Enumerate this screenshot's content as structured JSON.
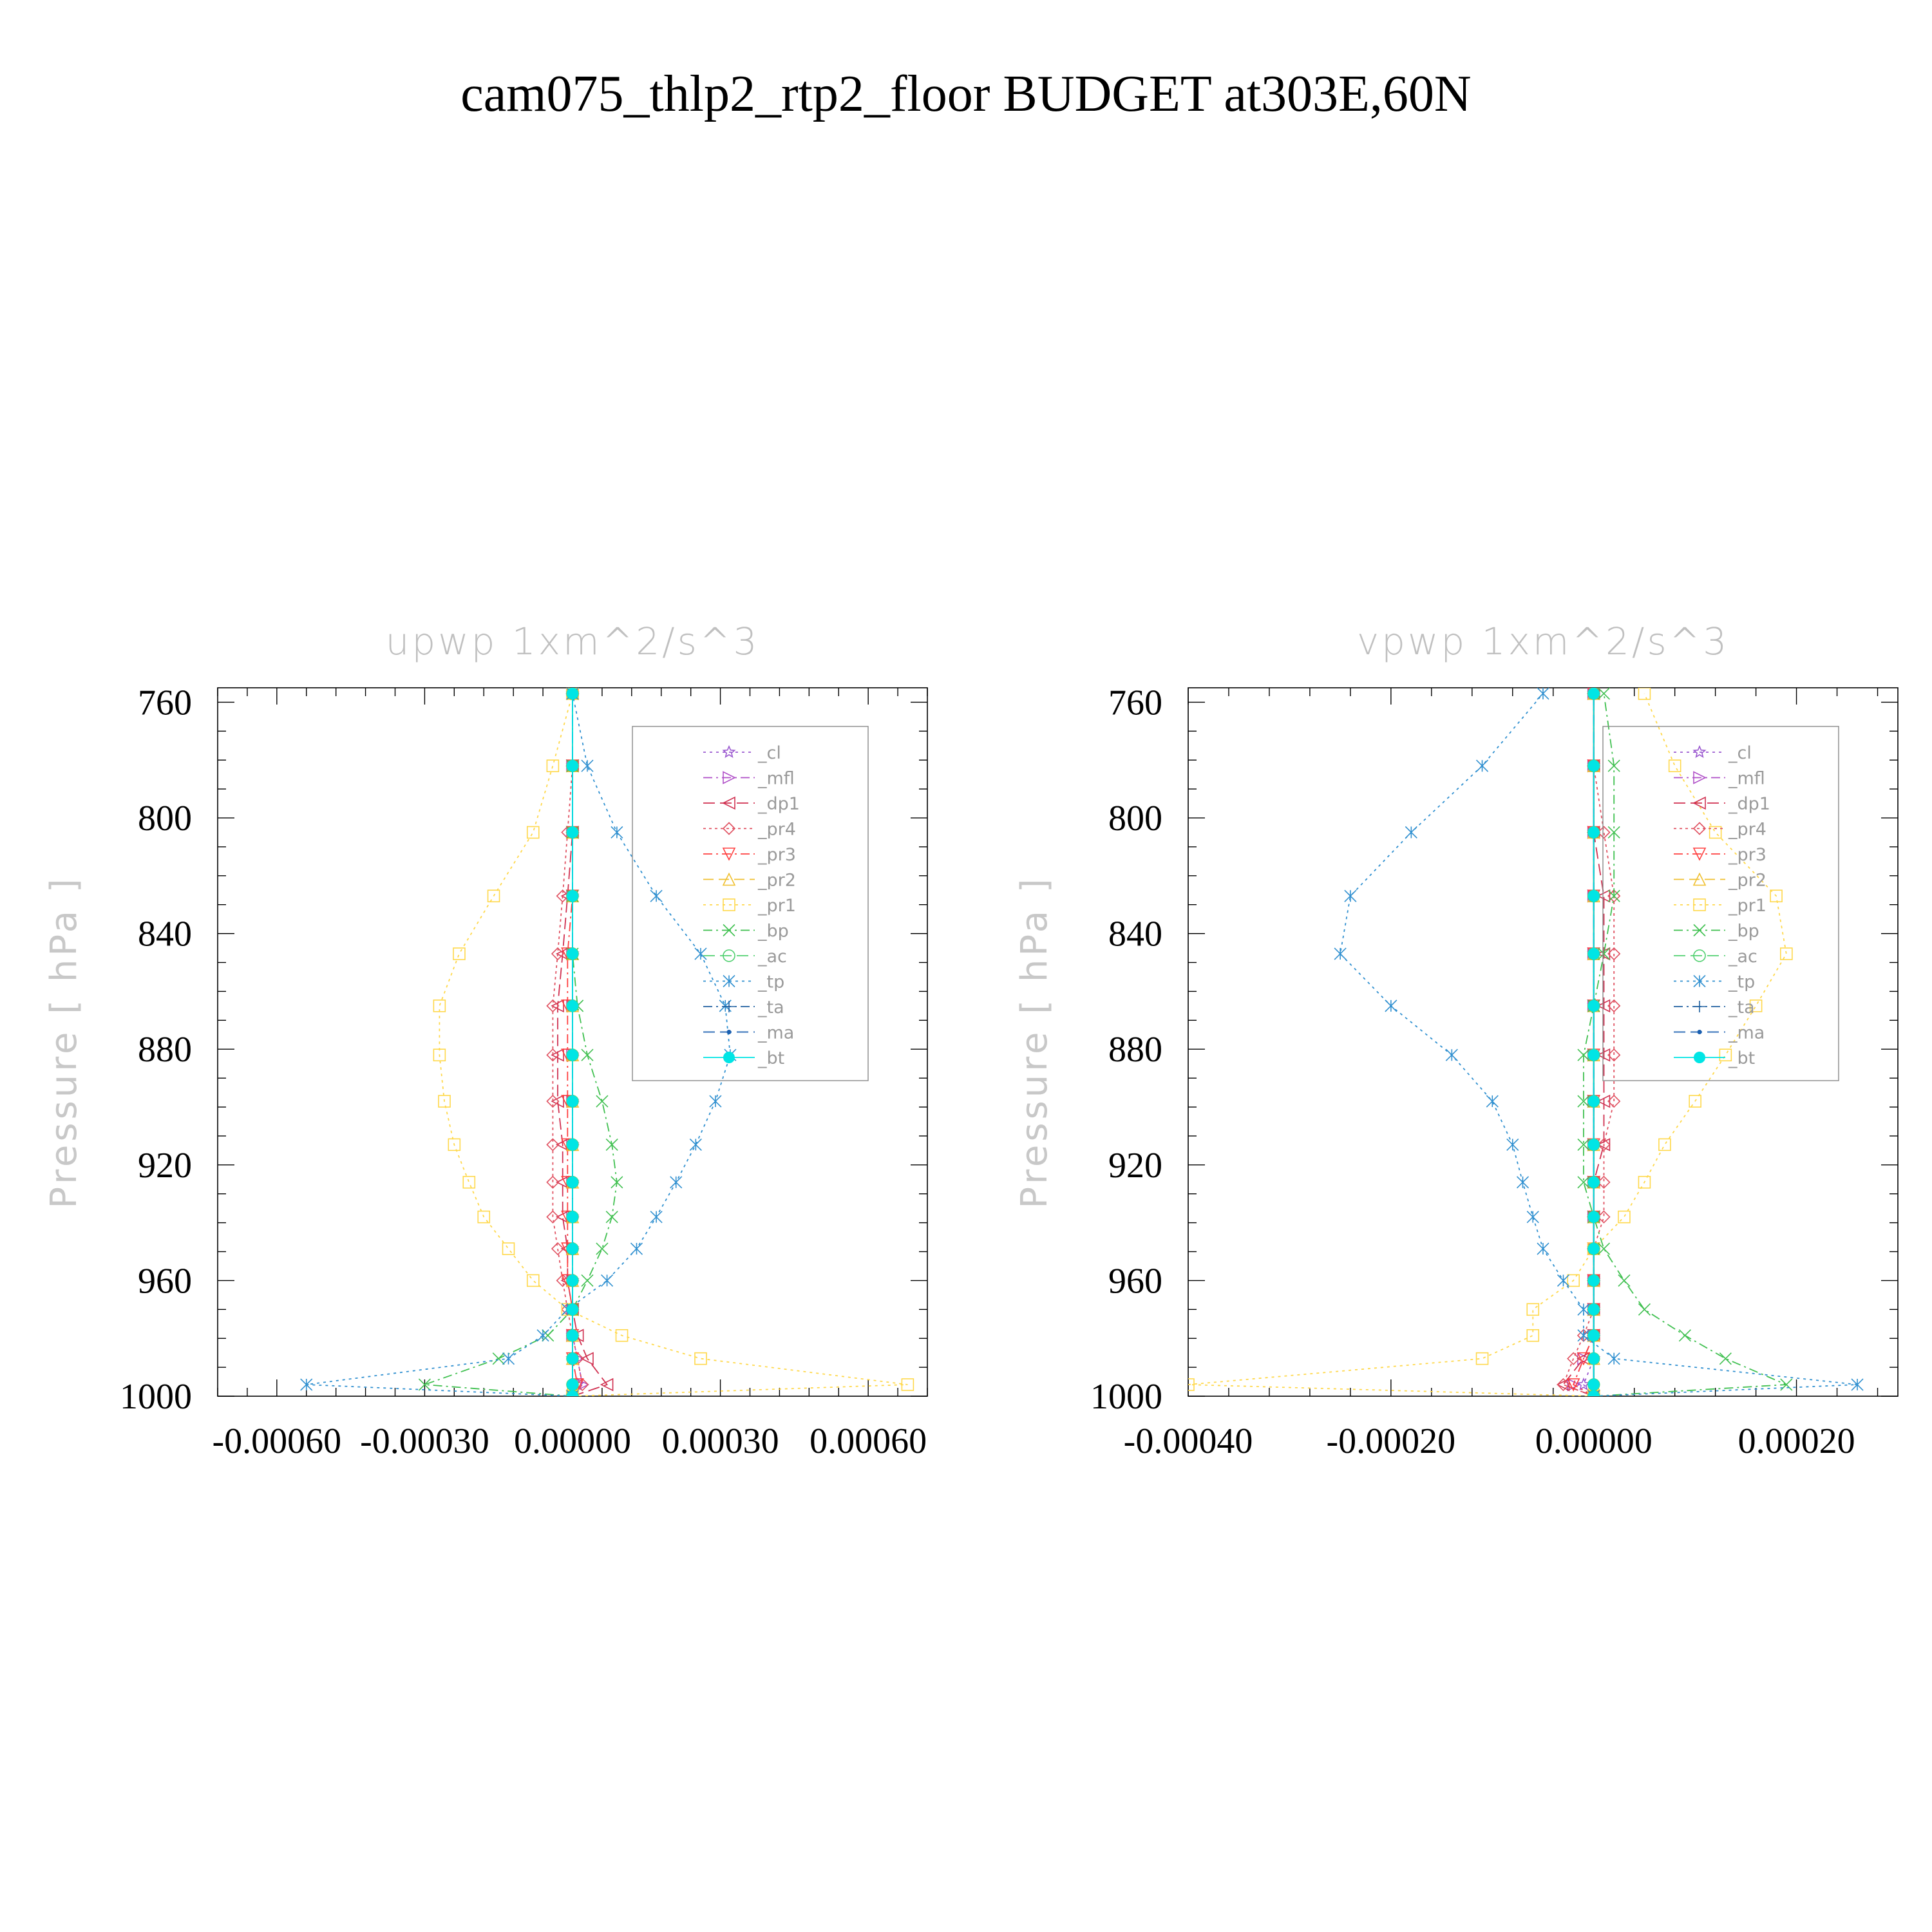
{
  "page_title": "cam075_thlp2_rtp2_floor  BUDGET at303E,60N",
  "chart_data": [
    {
      "type": "line",
      "title": "upwp    1xm^2/s^3",
      "ylabel": "Pressure  [ hPa ]",
      "xlabel": "",
      "ylim": [
        1000,
        755
      ],
      "y_reversed": true,
      "xlim": [
        -0.00072,
        0.00072
      ],
      "yticks": [
        760,
        800,
        840,
        880,
        920,
        960,
        1000
      ],
      "xticks": [
        -0.0006,
        -0.0003,
        0.0,
        0.0003,
        0.0006
      ],
      "xtick_labels": [
        "-0.00060",
        "-0.00030",
        "0.00000",
        "0.00030",
        "0.00060"
      ],
      "ytick_labels": [
        "760",
        "800",
        "840",
        "880",
        "920",
        "960",
        "1000"
      ],
      "grid": false,
      "legend_position": "top-right",
      "y": [
        1000,
        996,
        987,
        979,
        970,
        960,
        949,
        938,
        926,
        913,
        898,
        882,
        865,
        847,
        827,
        805,
        782,
        757
      ],
      "series": [
        {
          "name": "_cl",
          "color": "#9b59d0",
          "marker": "star",
          "dash": "4,6",
          "values": [
            0,
            1e-05,
            0,
            0,
            0,
            0,
            0,
            0,
            0,
            0,
            0,
            0,
            0,
            0,
            0,
            0,
            0,
            0
          ]
        },
        {
          "name": "_mfl",
          "color": "#b050c8",
          "marker": "tri-right",
          "dash": "14,6,3,6",
          "values": [
            0,
            2e-05,
            1e-05,
            0,
            0,
            0,
            0,
            0,
            0,
            0,
            0,
            0,
            0,
            0,
            0,
            0,
            0,
            0
          ]
        },
        {
          "name": "_dp1",
          "color": "#d03050",
          "marker": "tri-left",
          "dash": "18,8",
          "values": [
            0,
            7e-05,
            3e-05,
            1e-05,
            0,
            -1e-05,
            -1e-05,
            -2e-05,
            -2e-05,
            -2e-05,
            -3e-05,
            -3e-05,
            -3e-05,
            -2e-05,
            -1e-05,
            0,
            0,
            0
          ]
        },
        {
          "name": "_pr4",
          "color": "#e05060",
          "marker": "diamond",
          "dash": "4,5",
          "values": [
            0,
            2e-05,
            1e-05,
            0,
            -1e-05,
            -2e-05,
            -3e-05,
            -4e-05,
            -4e-05,
            -4e-05,
            -4e-05,
            -4e-05,
            -4e-05,
            -3e-05,
            -2e-05,
            -1e-05,
            0,
            0
          ]
        },
        {
          "name": "_pr3",
          "color": "#ff4040",
          "marker": "tri-down",
          "dash": "14,6,3,6",
          "values": [
            0,
            1e-05,
            0,
            0,
            0,
            -1e-05,
            -1e-05,
            -1e-05,
            -1e-05,
            -1e-05,
            -1e-05,
            -1e-05,
            -1e-05,
            -1e-05,
            0,
            0,
            0,
            0
          ]
        },
        {
          "name": "_pr2",
          "color": "#f0c030",
          "marker": "tri-up",
          "dash": "16,8",
          "values": [
            0,
            0,
            0,
            0,
            0,
            0,
            0,
            0,
            0,
            0,
            0,
            0,
            0,
            0,
            0,
            0,
            0,
            0
          ]
        },
        {
          "name": "_pr1",
          "color": "#ffd84a",
          "marker": "square",
          "dash": "4,6",
          "values": [
            0,
            0.00068,
            0.00026,
            0.0001,
            -1e-05,
            -8e-05,
            -0.00013,
            -0.00018,
            -0.00021,
            -0.00024,
            -0.00026,
            -0.00027,
            -0.00027,
            -0.00023,
            -0.00016,
            -8e-05,
            -4e-05,
            0
          ]
        },
        {
          "name": "_bp",
          "color": "#40c050",
          "marker": "x",
          "dash": "14,6,3,6",
          "values": [
            0,
            -0.0003,
            -0.00015,
            -5e-05,
            0,
            3e-05,
            6e-05,
            8e-05,
            9e-05,
            8e-05,
            6e-05,
            3e-05,
            1e-05,
            0,
            0,
            0,
            0,
            0
          ]
        },
        {
          "name": "_ac",
          "color": "#50d070",
          "marker": "circle",
          "dash": "18,8",
          "values": [
            0,
            0,
            0,
            0,
            0,
            0,
            0,
            0,
            0,
            0,
            0,
            0,
            0,
            0,
            0,
            0,
            0,
            0
          ]
        },
        {
          "name": "_tp",
          "color": "#3090d0",
          "marker": "asterisk",
          "dash": "4,6",
          "values": [
            0,
            -0.00054,
            -0.00013,
            -6e-05,
            -1e-05,
            7e-05,
            0.00013,
            0.00017,
            0.00021,
            0.00025,
            0.00029,
            0.00032,
            0.00031,
            0.00026,
            0.00017,
            9e-05,
            3e-05,
            0
          ]
        },
        {
          "name": "_ta",
          "color": "#2060a0",
          "marker": "plus",
          "dash": "14,6,3,6",
          "values": [
            0,
            0,
            0,
            0,
            0,
            0,
            0,
            0,
            0,
            0,
            0,
            0,
            0,
            0,
            0,
            0,
            0,
            0
          ]
        },
        {
          "name": "_ma",
          "color": "#1a5fb0",
          "marker": "dot",
          "dash": "18,8",
          "values": [
            0,
            0,
            0,
            0,
            0,
            0,
            0,
            0,
            0,
            0,
            0,
            0,
            0,
            0,
            0,
            0,
            0,
            0
          ]
        },
        {
          "name": "_bt",
          "color": "#00e5e5",
          "marker": "bigdot",
          "dash": "none",
          "values": [
            0,
            0,
            0,
            0,
            0,
            0,
            0,
            0,
            0,
            0,
            0,
            0,
            0,
            0,
            0,
            0,
            0,
            0
          ]
        }
      ]
    },
    {
      "type": "line",
      "title": "vpwp    1xm^2/s^3",
      "ylabel": "Pressure  [ hPa ]",
      "xlabel": "",
      "ylim": [
        1000,
        755
      ],
      "y_reversed": true,
      "xlim": [
        -0.0004,
        0.0003
      ],
      "yticks": [
        760,
        800,
        840,
        880,
        920,
        960,
        1000
      ],
      "xticks": [
        -0.0004,
        -0.0002,
        0.0,
        0.0002
      ],
      "xtick_labels": [
        "-0.00040",
        "-0.00020",
        "0.00000",
        "0.00020"
      ],
      "ytick_labels": [
        "760",
        "800",
        "840",
        "880",
        "920",
        "960",
        "1000"
      ],
      "grid": false,
      "legend_position": "top-right",
      "y": [
        1000,
        996,
        987,
        979,
        970,
        960,
        949,
        938,
        926,
        913,
        898,
        882,
        865,
        847,
        827,
        805,
        782,
        757
      ],
      "series": [
        {
          "name": "_cl",
          "color": "#9b59d0",
          "marker": "star",
          "dash": "4,6",
          "values": [
            0,
            -1e-05,
            0,
            0,
            0,
            0,
            0,
            0,
            0,
            0,
            0,
            0,
            0,
            0,
            0,
            0,
            0,
            0
          ]
        },
        {
          "name": "_mfl",
          "color": "#b050c8",
          "marker": "tri-right",
          "dash": "14,6,3,6",
          "values": [
            0,
            -2e-05,
            -1e-05,
            0,
            0,
            0,
            0,
            0,
            0,
            0,
            0,
            0,
            0,
            0,
            0,
            0,
            0,
            0
          ]
        },
        {
          "name": "_dp1",
          "color": "#d03050",
          "marker": "tri-left",
          "dash": "18,8",
          "values": [
            0,
            -3e-05,
            -1e-05,
            0,
            0,
            0,
            0,
            0,
            0,
            1e-05,
            1e-05,
            1e-05,
            1e-05,
            1e-05,
            1e-05,
            0,
            0,
            0
          ]
        },
        {
          "name": "_pr4",
          "color": "#e05060",
          "marker": "diamond",
          "dash": "4,5",
          "values": [
            0,
            -3e-05,
            -2e-05,
            -1e-05,
            0,
            0,
            0,
            1e-05,
            1e-05,
            1e-05,
            2e-05,
            2e-05,
            2e-05,
            2e-05,
            2e-05,
            1e-05,
            0,
            0
          ]
        },
        {
          "name": "_pr3",
          "color": "#ff4040",
          "marker": "tri-down",
          "dash": "14,6,3,6",
          "values": [
            0,
            -2e-05,
            -1e-05,
            0,
            0,
            0,
            0,
            0,
            0,
            0,
            0,
            0,
            0,
            0,
            0,
            0,
            0,
            0
          ]
        },
        {
          "name": "_pr2",
          "color": "#f0c030",
          "marker": "tri-up",
          "dash": "16,8",
          "values": [
            0,
            0,
            0,
            0,
            0,
            0,
            0,
            0,
            0,
            0,
            0,
            0,
            0,
            0,
            0,
            0,
            0,
            0
          ]
        },
        {
          "name": "_pr1",
          "color": "#ffd84a",
          "marker": "square",
          "dash": "4,6",
          "values": [
            0,
            -0.0004,
            -0.00011,
            -6e-05,
            -6e-05,
            -2e-05,
            0,
            3e-05,
            5e-05,
            7e-05,
            0.0001,
            0.00013,
            0.00016,
            0.00019,
            0.00018,
            0.00012,
            8e-05,
            5e-05
          ]
        },
        {
          "name": "_bp",
          "color": "#40c050",
          "marker": "x",
          "dash": "14,6,3,6",
          "values": [
            0,
            0.00019,
            0.00013,
            9e-05,
            5e-05,
            3e-05,
            1e-05,
            0,
            -1e-05,
            -1e-05,
            -1e-05,
            -1e-05,
            0,
            1e-05,
            2e-05,
            2e-05,
            2e-05,
            1e-05
          ]
        },
        {
          "name": "_ac",
          "color": "#50d070",
          "marker": "circle",
          "dash": "18,8",
          "values": [
            0,
            0,
            0,
            0,
            0,
            0,
            0,
            0,
            0,
            0,
            0,
            0,
            0,
            0,
            0,
            0,
            0,
            0
          ]
        },
        {
          "name": "_tp",
          "color": "#3090d0",
          "marker": "asterisk",
          "dash": "4,6",
          "values": [
            0,
            0.00026,
            2e-05,
            -1e-05,
            -1e-05,
            -3e-05,
            -5e-05,
            -6e-05,
            -7e-05,
            -8e-05,
            -0.0001,
            -0.00014,
            -0.0002,
            -0.00025,
            -0.00024,
            -0.00018,
            -0.00011,
            -5e-05
          ]
        },
        {
          "name": "_ta",
          "color": "#2060a0",
          "marker": "plus",
          "dash": "14,6,3,6",
          "values": [
            0,
            0,
            0,
            0,
            0,
            0,
            0,
            0,
            0,
            0,
            0,
            0,
            0,
            0,
            0,
            0,
            0,
            0
          ]
        },
        {
          "name": "_ma",
          "color": "#1a5fb0",
          "marker": "dot",
          "dash": "18,8",
          "values": [
            0,
            0,
            0,
            0,
            0,
            0,
            0,
            0,
            0,
            0,
            0,
            0,
            0,
            0,
            0,
            0,
            0,
            0
          ]
        },
        {
          "name": "_bt",
          "color": "#00e5e5",
          "marker": "bigdot",
          "dash": "none",
          "values": [
            0,
            0,
            0,
            0,
            0,
            0,
            0,
            0,
            0,
            0,
            0,
            0,
            0,
            0,
            0,
            0,
            0,
            0
          ]
        }
      ]
    }
  ]
}
